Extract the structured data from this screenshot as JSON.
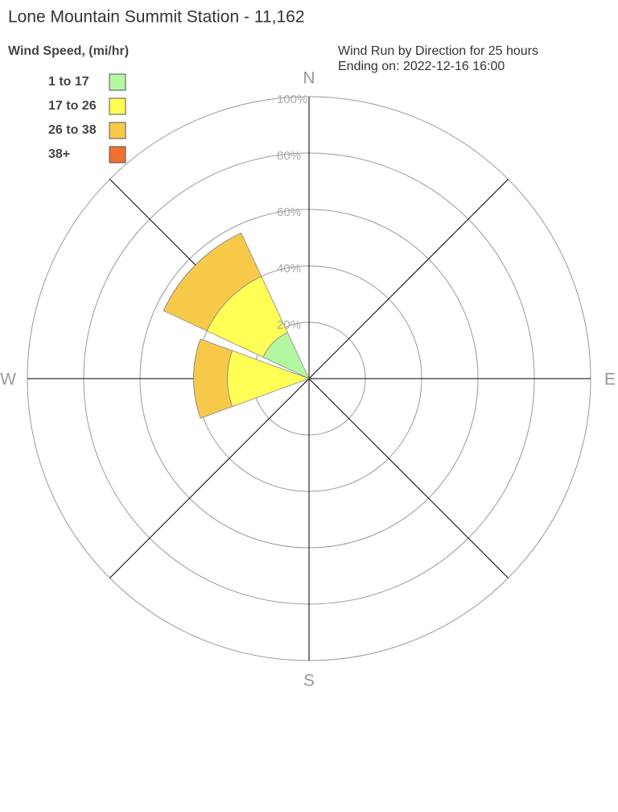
{
  "chart_data": {
    "type": "windrose",
    "title": "Lone Mountain Summit Station - 11,162",
    "legend_title": "Wind Speed, (mi/hr)",
    "subtitle": [
      "Wind Run by Direction for 25 hours",
      "Ending on: 2022-12-16 16:00"
    ],
    "categories": [
      "N",
      null,
      "E",
      null,
      "S",
      null,
      "W",
      null
    ],
    "angles": [
      0,
      45,
      90,
      135,
      180,
      225,
      270,
      315
    ],
    "series": [
      {
        "name": "1 to 17",
        "color": "#b3f7a0",
        "values": [
          0,
          0,
          0,
          0,
          0,
          0,
          0,
          18
        ]
      },
      {
        "name": "17 to 26",
        "color": "#ffff55",
        "values": [
          0,
          0,
          0,
          0,
          0,
          0,
          29,
          22
        ]
      },
      {
        "name": "26 to 38",
        "color": "#f7c948",
        "values": [
          0,
          0,
          0,
          0,
          0,
          0,
          12,
          17
        ]
      },
      {
        "name": "38+",
        "color": "#f07030",
        "values": [
          0,
          0,
          0,
          0,
          0,
          0,
          0,
          0
        ]
      }
    ],
    "rlim": [
      0,
      100
    ],
    "rticks": [
      {
        "value": 20,
        "label": "20%"
      },
      {
        "value": 40,
        "label": "40%"
      },
      {
        "value": 60,
        "label": "60%"
      },
      {
        "value": 80,
        "label": "80%"
      },
      {
        "value": 100,
        "label": "100%"
      }
    ],
    "stacked": true
  }
}
